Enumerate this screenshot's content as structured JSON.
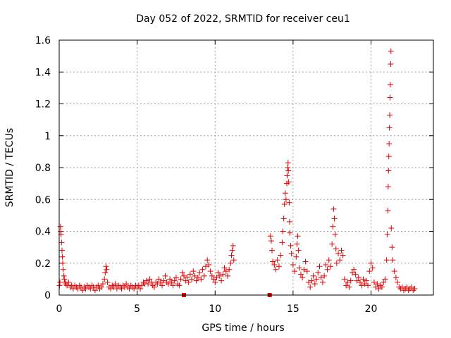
{
  "chart_data": {
    "type": "scatter",
    "title": "Day 052 of 2022, SRMTID for receiver ceu1",
    "xlabel": "GPS time / hours",
    "ylabel": "SRMTID / TECUs",
    "xlim": [
      0,
      24
    ],
    "ylim": [
      0,
      1.6
    ],
    "x_ticks": [
      "0",
      "5",
      "10",
      "15",
      "20"
    ],
    "x_tick_values": [
      0,
      5,
      10,
      15,
      20
    ],
    "y_ticks": [
      "0",
      "0.2",
      "0.4",
      "0.6",
      "0.8",
      "1",
      "1.2",
      "1.4",
      "1.6"
    ],
    "y_tick_values": [
      0,
      0.2,
      0.4,
      0.6,
      0.8,
      1.0,
      1.2,
      1.4,
      1.6
    ],
    "grid": true,
    "marker": "plus",
    "color": "#e00000",
    "series": [
      {
        "name": "SRMTID",
        "points": [
          [
            0.02,
            0.06
          ],
          [
            0.05,
            0.08
          ],
          [
            0.08,
            0.43
          ],
          [
            0.1,
            0.4
          ],
          [
            0.12,
            0.38
          ],
          [
            0.15,
            0.33
          ],
          [
            0.18,
            0.28
          ],
          [
            0.2,
            0.24
          ],
          [
            0.23,
            0.2
          ],
          [
            0.26,
            0.16
          ],
          [
            0.3,
            0.12
          ],
          [
            0.33,
            0.1
          ],
          [
            0.37,
            0.08
          ],
          [
            0.42,
            0.07
          ],
          [
            0.5,
            0.06
          ],
          [
            0.6,
            0.08
          ],
          [
            0.7,
            0.05
          ],
          [
            0.8,
            0.06
          ],
          [
            0.9,
            0.04
          ],
          [
            1.0,
            0.06
          ],
          [
            1.1,
            0.05
          ],
          [
            1.2,
            0.04
          ],
          [
            1.3,
            0.06
          ],
          [
            1.4,
            0.05
          ],
          [
            1.5,
            0.03
          ],
          [
            1.6,
            0.05
          ],
          [
            1.7,
            0.04
          ],
          [
            1.8,
            0.06
          ],
          [
            1.9,
            0.05
          ],
          [
            2.0,
            0.04
          ],
          [
            2.1,
            0.06
          ],
          [
            2.2,
            0.05
          ],
          [
            2.3,
            0.03
          ],
          [
            2.4,
            0.05
          ],
          [
            2.5,
            0.06
          ],
          [
            2.6,
            0.04
          ],
          [
            2.7,
            0.05
          ],
          [
            2.8,
            0.07
          ],
          [
            2.9,
            0.1
          ],
          [
            2.95,
            0.14
          ],
          [
            3.0,
            0.18
          ],
          [
            3.05,
            0.16
          ],
          [
            3.1,
            0.08
          ],
          [
            3.2,
            0.05
          ],
          [
            3.3,
            0.04
          ],
          [
            3.4,
            0.06
          ],
          [
            3.5,
            0.05
          ],
          [
            3.6,
            0.07
          ],
          [
            3.7,
            0.04
          ],
          [
            3.8,
            0.06
          ],
          [
            3.9,
            0.05
          ],
          [
            4.0,
            0.04
          ],
          [
            4.1,
            0.06
          ],
          [
            4.2,
            0.05
          ],
          [
            4.3,
            0.07
          ],
          [
            4.4,
            0.05
          ],
          [
            4.5,
            0.04
          ],
          [
            4.6,
            0.06
          ],
          [
            4.7,
            0.05
          ],
          [
            4.8,
            0.04
          ],
          [
            4.9,
            0.06
          ],
          [
            5.0,
            0.05
          ],
          [
            5.1,
            0.06
          ],
          [
            5.2,
            0.04
          ],
          [
            5.3,
            0.06
          ],
          [
            5.4,
            0.08
          ],
          [
            5.5,
            0.07
          ],
          [
            5.6,
            0.09
          ],
          [
            5.7,
            0.07
          ],
          [
            5.8,
            0.1
          ],
          [
            5.9,
            0.08
          ],
          [
            6.0,
            0.06
          ],
          [
            6.1,
            0.05
          ],
          [
            6.2,
            0.08
          ],
          [
            6.3,
            0.07
          ],
          [
            6.4,
            0.1
          ],
          [
            6.5,
            0.08
          ],
          [
            6.6,
            0.06
          ],
          [
            6.7,
            0.09
          ],
          [
            6.8,
            0.12
          ],
          [
            6.9,
            0.08
          ],
          [
            7.0,
            0.07
          ],
          [
            7.1,
            0.1
          ],
          [
            7.2,
            0.08
          ],
          [
            7.3,
            0.06
          ],
          [
            7.4,
            0.09
          ],
          [
            7.5,
            0.11
          ],
          [
            7.6,
            0.07
          ],
          [
            7.7,
            0.06
          ],
          [
            7.8,
            0.1
          ],
          [
            7.9,
            0.14
          ],
          [
            8.0,
            0.12
          ],
          [
            8.1,
            0.09
          ],
          [
            8.2,
            0.11
          ],
          [
            8.3,
            0.08
          ],
          [
            8.4,
            0.13
          ],
          [
            8.5,
            0.1
          ],
          [
            8.6,
            0.15
          ],
          [
            8.7,
            0.12
          ],
          [
            8.8,
            0.09
          ],
          [
            8.9,
            0.11
          ],
          [
            9.0,
            0.14
          ],
          [
            9.1,
            0.1
          ],
          [
            9.2,
            0.16
          ],
          [
            9.3,
            0.12
          ],
          [
            9.4,
            0.18
          ],
          [
            9.5,
            0.22
          ],
          [
            9.6,
            0.19
          ],
          [
            9.7,
            0.15
          ],
          [
            9.8,
            0.12
          ],
          [
            9.9,
            0.1
          ],
          [
            10.0,
            0.08
          ],
          [
            10.1,
            0.11
          ],
          [
            10.2,
            0.14
          ],
          [
            10.3,
            0.12
          ],
          [
            10.4,
            0.09
          ],
          [
            10.5,
            0.13
          ],
          [
            10.6,
            0.17
          ],
          [
            10.7,
            0.15
          ],
          [
            10.8,
            0.12
          ],
          [
            10.9,
            0.16
          ],
          [
            11.0,
            0.2
          ],
          [
            11.05,
            0.25
          ],
          [
            11.1,
            0.28
          ],
          [
            11.15,
            0.31
          ],
          [
            11.2,
            0.22
          ],
          [
            13.55,
            0.37
          ],
          [
            13.6,
            0.34
          ],
          [
            13.65,
            0.28
          ],
          [
            13.7,
            0.21
          ],
          [
            13.8,
            0.19
          ],
          [
            13.9,
            0.16
          ],
          [
            14.0,
            0.22
          ],
          [
            14.1,
            0.18
          ],
          [
            14.2,
            0.25
          ],
          [
            14.3,
            0.33
          ],
          [
            14.35,
            0.4
          ],
          [
            14.4,
            0.48
          ],
          [
            14.45,
            0.57
          ],
          [
            14.5,
            0.64
          ],
          [
            14.55,
            0.6
          ],
          [
            14.6,
            0.7
          ],
          [
            14.62,
            0.75
          ],
          [
            14.65,
            0.8
          ],
          [
            14.68,
            0.83
          ],
          [
            14.7,
            0.78
          ],
          [
            14.72,
            0.71
          ],
          [
            14.75,
            0.58
          ],
          [
            14.78,
            0.46
          ],
          [
            14.8,
            0.39
          ],
          [
            14.85,
            0.31
          ],
          [
            14.9,
            0.26
          ],
          [
            15.0,
            0.19
          ],
          [
            15.1,
            0.15
          ],
          [
            15.2,
            0.24
          ],
          [
            15.25,
            0.32
          ],
          [
            15.3,
            0.37
          ],
          [
            15.35,
            0.28
          ],
          [
            15.4,
            0.17
          ],
          [
            15.5,
            0.13
          ],
          [
            15.6,
            0.11
          ],
          [
            15.7,
            0.16
          ],
          [
            15.8,
            0.21
          ],
          [
            15.9,
            0.15
          ],
          [
            16.0,
            0.08
          ],
          [
            16.1,
            0.05
          ],
          [
            16.2,
            0.09
          ],
          [
            16.3,
            0.12
          ],
          [
            16.4,
            0.07
          ],
          [
            16.5,
            0.1
          ],
          [
            16.6,
            0.14
          ],
          [
            16.7,
            0.18
          ],
          [
            16.8,
            0.11
          ],
          [
            16.9,
            0.08
          ],
          [
            17.0,
            0.12
          ],
          [
            17.1,
            0.19
          ],
          [
            17.2,
            0.16
          ],
          [
            17.3,
            0.22
          ],
          [
            17.4,
            0.18
          ],
          [
            17.5,
            0.32
          ],
          [
            17.55,
            0.43
          ],
          [
            17.6,
            0.54
          ],
          [
            17.65,
            0.48
          ],
          [
            17.7,
            0.38
          ],
          [
            17.75,
            0.29
          ],
          [
            17.8,
            0.2
          ],
          [
            17.9,
            0.26
          ],
          [
            18.0,
            0.22
          ],
          [
            18.1,
            0.28
          ],
          [
            18.2,
            0.25
          ],
          [
            18.3,
            0.1
          ],
          [
            18.4,
            0.06
          ],
          [
            18.5,
            0.08
          ],
          [
            18.6,
            0.05
          ],
          [
            18.7,
            0.09
          ],
          [
            18.8,
            0.14
          ],
          [
            18.9,
            0.16
          ],
          [
            19.0,
            0.13
          ],
          [
            19.1,
            0.09
          ],
          [
            19.2,
            0.11
          ],
          [
            19.3,
            0.08
          ],
          [
            19.4,
            0.06
          ],
          [
            19.5,
            0.1
          ],
          [
            19.6,
            0.07
          ],
          [
            19.7,
            0.09
          ],
          [
            19.8,
            0.06
          ],
          [
            19.9,
            0.15
          ],
          [
            20.0,
            0.2
          ],
          [
            20.1,
            0.17
          ],
          [
            20.2,
            0.08
          ],
          [
            20.3,
            0.05
          ],
          [
            20.4,
            0.07
          ],
          [
            20.5,
            0.04
          ],
          [
            20.6,
            0.06
          ],
          [
            20.7,
            0.05
          ],
          [
            20.8,
            0.08
          ],
          [
            20.9,
            0.1
          ],
          [
            21.0,
            0.22
          ],
          [
            21.05,
            0.38
          ],
          [
            21.08,
            0.53
          ],
          [
            21.1,
            0.68
          ],
          [
            21.12,
            0.78
          ],
          [
            21.14,
            0.87
          ],
          [
            21.16,
            0.95
          ],
          [
            21.18,
            1.05
          ],
          [
            21.2,
            1.13
          ],
          [
            21.22,
            1.24
          ],
          [
            21.24,
            1.32
          ],
          [
            21.26,
            1.45
          ],
          [
            21.28,
            1.53
          ],
          [
            21.3,
            0.42
          ],
          [
            21.35,
            0.3
          ],
          [
            21.4,
            0.22
          ],
          [
            21.5,
            0.15
          ],
          [
            21.6,
            0.11
          ],
          [
            21.7,
            0.08
          ],
          [
            21.8,
            0.05
          ],
          [
            21.9,
            0.04
          ],
          [
            22.0,
            0.05
          ],
          [
            22.1,
            0.03
          ],
          [
            22.2,
            0.04
          ],
          [
            22.3,
            0.05
          ],
          [
            22.4,
            0.03
          ],
          [
            22.5,
            0.04
          ],
          [
            22.6,
            0.05
          ],
          [
            22.7,
            0.03
          ],
          [
            22.8,
            0.04
          ]
        ]
      },
      {
        "name": "filled-square-markers",
        "marker": "square",
        "points": [
          [
            8.0,
            0.0
          ],
          [
            13.5,
            0.0
          ]
        ]
      }
    ]
  }
}
